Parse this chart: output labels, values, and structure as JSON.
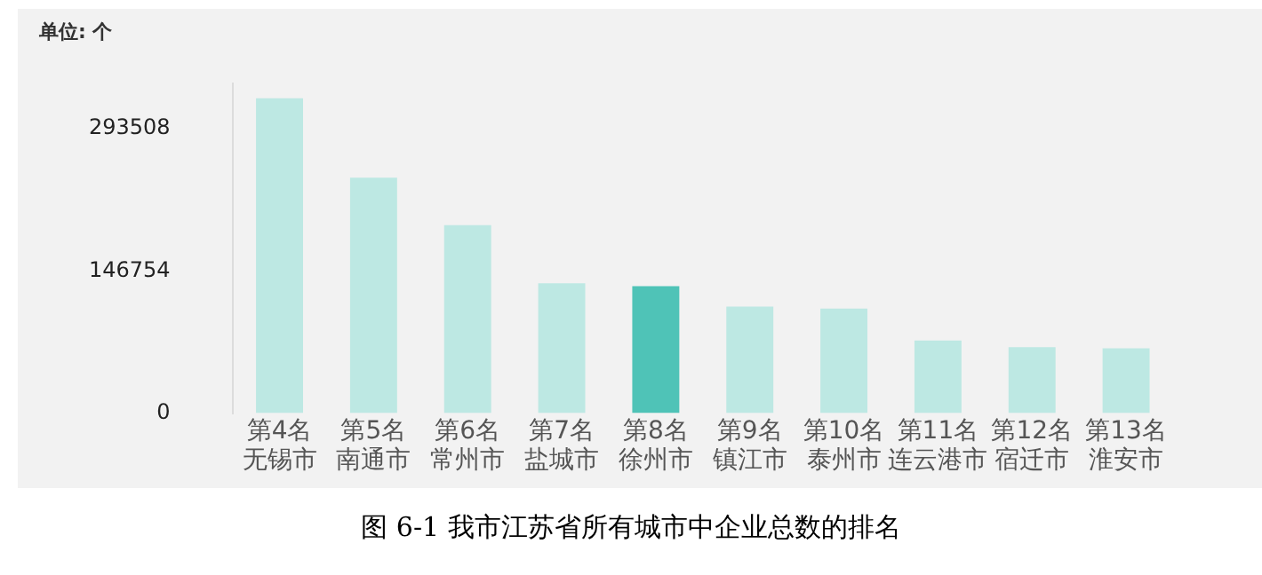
{
  "chart_data": {
    "type": "bar",
    "ylabel": "单位: 个",
    "categories": [
      "第4名无锡市",
      "第5名南通市",
      "第6名常州市",
      "第7名盐城市",
      "第8名徐州市",
      "第9名镇江市",
      "第10名泰州市",
      "第11名连云港市",
      "第12名宿迁市",
      "第13名淮安市"
    ],
    "values": [
      325000,
      243000,
      194000,
      134000,
      131000,
      110000,
      108000,
      75000,
      68000,
      67000
    ],
    "colors": [
      "#bde8e3",
      "#bde8e3",
      "#bde8e3",
      "#bde8e3",
      "#4fc3b7",
      "#bde8e3",
      "#bde8e3",
      "#bde8e3",
      "#bde8e3",
      "#bde8e3"
    ],
    "ylim": [
      0,
      340000
    ],
    "yticks": [
      0,
      146754,
      293508
    ],
    "grid": false,
    "legend": false,
    "annotations": [
      "图 6-1 我市江苏省所有城市中企业总数的排名"
    ]
  }
}
